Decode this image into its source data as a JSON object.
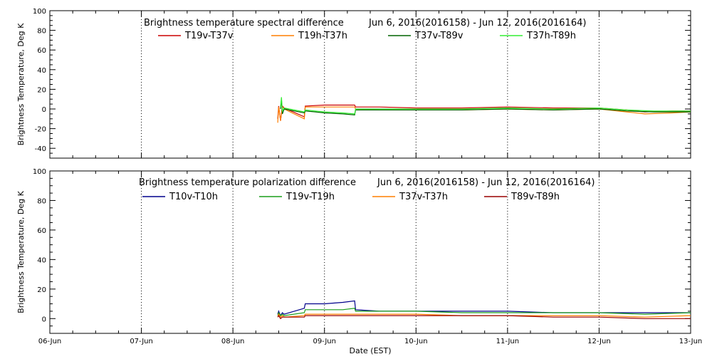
{
  "chart_data": [
    {
      "type": "line",
      "title": "Brightness temperature spectral difference",
      "date_range": "Jun  6, 2016(2016158) - Jun 12, 2016(2016164)",
      "ylabel": "Brightness Temperature, Deg K",
      "ylim": [
        -50,
        100
      ],
      "yticks": [
        "-40",
        "-20",
        "0",
        "20",
        "40",
        "60",
        "80",
        "100"
      ],
      "xlim_days": [
        0,
        7
      ],
      "grid": "vertical dotted at each day",
      "legend_position": "top",
      "series": [
        {
          "name": "T19v-T37v",
          "color": "#cc0000",
          "points": [
            [
              2.49,
              -10
            ],
            [
              2.5,
              3
            ],
            [
              2.52,
              -12
            ],
            [
              2.54,
              3
            ],
            [
              2.56,
              1
            ],
            [
              2.78,
              -8
            ],
            [
              2.79,
              3
            ],
            [
              3.0,
              4
            ],
            [
              3.2,
              4
            ],
            [
              3.33,
              4
            ],
            [
              3.34,
              2
            ],
            [
              3.6,
              2
            ],
            [
              4.0,
              1
            ],
            [
              4.5,
              1
            ],
            [
              5.0,
              2
            ],
            [
              5.5,
              1
            ],
            [
              6.0,
              1
            ],
            [
              6.3,
              -1
            ],
            [
              6.5,
              -3
            ],
            [
              6.8,
              -2
            ],
            [
              7.0,
              -2
            ]
          ]
        },
        {
          "name": "T19h-T37h",
          "color": "#ff7f00",
          "points": [
            [
              2.49,
              -14
            ],
            [
              2.5,
              2
            ],
            [
              2.52,
              -12
            ],
            [
              2.54,
              2
            ],
            [
              2.56,
              0
            ],
            [
              2.78,
              -10
            ],
            [
              2.79,
              2
            ],
            [
              3.0,
              2
            ],
            [
              3.2,
              2
            ],
            [
              3.33,
              2
            ],
            [
              3.34,
              0
            ],
            [
              3.6,
              -1
            ],
            [
              4.0,
              -1
            ],
            [
              4.5,
              -1
            ],
            [
              5.0,
              0
            ],
            [
              5.5,
              -1
            ],
            [
              6.0,
              0
            ],
            [
              6.3,
              -3
            ],
            [
              6.5,
              -5
            ],
            [
              6.8,
              -4
            ],
            [
              7.0,
              -3
            ]
          ]
        },
        {
          "name": "T37v-T89v",
          "color": "#006400",
          "points": [
            [
              2.52,
              0
            ],
            [
              2.53,
              10
            ],
            [
              2.54,
              -5
            ],
            [
              2.56,
              0
            ],
            [
              2.78,
              -4
            ],
            [
              2.79,
              -2
            ],
            [
              2.9,
              -3
            ],
            [
              3.0,
              -4
            ],
            [
              3.2,
              -5
            ],
            [
              3.33,
              -6
            ],
            [
              3.34,
              -1
            ],
            [
              3.6,
              -1
            ],
            [
              4.0,
              -1
            ],
            [
              4.5,
              -1
            ],
            [
              5.0,
              0
            ],
            [
              5.5,
              -1
            ],
            [
              6.0,
              0
            ],
            [
              6.3,
              -2
            ],
            [
              6.6,
              -3
            ],
            [
              7.0,
              -3
            ]
          ]
        },
        {
          "name": "T37h-T89h",
          "color": "#33ee33",
          "points": [
            [
              2.52,
              2
            ],
            [
              2.53,
              12
            ],
            [
              2.54,
              -2
            ],
            [
              2.56,
              1
            ],
            [
              2.78,
              -3
            ],
            [
              2.79,
              -1
            ],
            [
              2.9,
              -2
            ],
            [
              3.0,
              -3
            ],
            [
              3.2,
              -4
            ],
            [
              3.33,
              -5
            ],
            [
              3.34,
              0
            ],
            [
              3.6,
              0
            ],
            [
              4.0,
              0
            ],
            [
              4.5,
              0
            ],
            [
              5.0,
              1
            ],
            [
              5.5,
              0
            ],
            [
              6.0,
              1
            ],
            [
              6.3,
              -1
            ],
            [
              6.6,
              -2
            ],
            [
              7.0,
              -2
            ]
          ]
        }
      ]
    },
    {
      "type": "line",
      "title": "Brightness temperature polarization difference",
      "date_range": "Jun  6, 2016(2016158) - Jun 12, 2016(2016164)",
      "ylabel": "Brightness Temperature, Deg K",
      "ylim": [
        -10,
        100
      ],
      "yticks": [
        "0",
        "20",
        "40",
        "60",
        "80",
        "100"
      ],
      "xlim_days": [
        0,
        7
      ],
      "xlabel": "Date (EST)",
      "xticks": [
        "06-Jun",
        "07-Jun",
        "08-Jun",
        "09-Jun",
        "10-Jun",
        "11-Jun",
        "12-Jun",
        "13-Jun"
      ],
      "grid": "vertical dotted at each day",
      "legend_position": "top",
      "series": [
        {
          "name": "T10v-T10h",
          "color": "#00008b",
          "points": [
            [
              2.49,
              3
            ],
            [
              2.5,
              5
            ],
            [
              2.52,
              2
            ],
            [
              2.54,
              4
            ],
            [
              2.56,
              3
            ],
            [
              2.78,
              7
            ],
            [
              2.79,
              10
            ],
            [
              3.0,
              10
            ],
            [
              3.2,
              11
            ],
            [
              3.33,
              12
            ],
            [
              3.34,
              6
            ],
            [
              3.6,
              5
            ],
            [
              4.0,
              5
            ],
            [
              4.5,
              5
            ],
            [
              5.0,
              5
            ],
            [
              5.5,
              4
            ],
            [
              6.0,
              4
            ],
            [
              6.5,
              4
            ],
            [
              7.0,
              4
            ]
          ]
        },
        {
          "name": "T19v-T19h",
          "color": "#1a9e1a",
          "points": [
            [
              2.49,
              2
            ],
            [
              2.5,
              4
            ],
            [
              2.52,
              2
            ],
            [
              2.54,
              3
            ],
            [
              2.56,
              2
            ],
            [
              2.78,
              4
            ],
            [
              2.79,
              6
            ],
            [
              3.0,
              6
            ],
            [
              3.2,
              6
            ],
            [
              3.33,
              7
            ],
            [
              3.34,
              5
            ],
            [
              3.6,
              5
            ],
            [
              4.0,
              5
            ],
            [
              4.5,
              4
            ],
            [
              5.0,
              4
            ],
            [
              5.5,
              4
            ],
            [
              6.0,
              4
            ],
            [
              6.5,
              3
            ],
            [
              7.0,
              4
            ]
          ]
        },
        {
          "name": "T37v-T37h",
          "color": "#ff7f00",
          "points": [
            [
              2.49,
              1
            ],
            [
              2.5,
              3
            ],
            [
              2.52,
              1
            ],
            [
              2.54,
              2
            ],
            [
              2.56,
              1
            ],
            [
              2.78,
              2
            ],
            [
              2.79,
              3
            ],
            [
              3.0,
              3
            ],
            [
              3.2,
              3
            ],
            [
              3.33,
              3
            ],
            [
              3.34,
              3
            ],
            [
              3.6,
              3
            ],
            [
              4.0,
              3
            ],
            [
              4.5,
              2
            ],
            [
              5.0,
              2
            ],
            [
              5.5,
              2
            ],
            [
              6.0,
              2
            ],
            [
              6.5,
              1
            ],
            [
              7.0,
              2
            ]
          ]
        },
        {
          "name": "T89v-T89h",
          "color": "#990000",
          "points": [
            [
              2.49,
              1
            ],
            [
              2.5,
              2
            ],
            [
              2.52,
              0
            ],
            [
              2.54,
              1
            ],
            [
              2.56,
              1
            ],
            [
              2.78,
              1
            ],
            [
              2.79,
              2
            ],
            [
              3.0,
              2
            ],
            [
              3.2,
              2
            ],
            [
              3.33,
              2
            ],
            [
              3.34,
              2
            ],
            [
              3.6,
              2
            ],
            [
              4.0,
              2
            ],
            [
              4.5,
              2
            ],
            [
              5.0,
              2
            ],
            [
              5.5,
              1
            ],
            [
              6.0,
              1
            ],
            [
              6.5,
              0
            ],
            [
              7.0,
              0
            ]
          ]
        }
      ]
    }
  ]
}
